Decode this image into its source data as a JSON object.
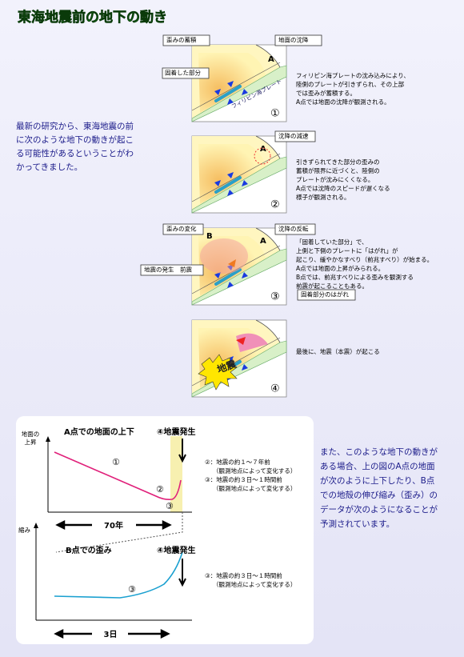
{
  "title": "東海地震前の地下の動き",
  "intro": [
    "最新の研究から、東海地震の前",
    "に次のような地下の動きが起こ",
    "る可能性があるということがわ",
    "かってきました。"
  ],
  "panels": [
    {
      "number": "①",
      "labels": [
        "歪みの蓄積",
        "地面の沈降",
        "A",
        "固着した部分",
        "フィリピン海プレート"
      ],
      "description": [
        "フィリピン海プレートの沈み込みにより、",
        "陸側のプレートが引きずられ、その上部",
        "では歪みが蓄積する。",
        "A点では地面の沈降が観測される。"
      ]
    },
    {
      "number": "②",
      "labels": [
        "沈降の減速",
        "A"
      ],
      "description": [
        "引きずられてきた部分の歪みの",
        "蓄積が限界に近づくと、陸側の",
        "プレートが沈みにくくなる。",
        "A点では沈降のスピードが遅くなる",
        "様子が観測される。"
      ]
    },
    {
      "number": "③",
      "labels": [
        "歪みの変化",
        "B",
        "沈降の反転",
        "A",
        "地震の発生　前震",
        "固着部分のはがれ"
      ],
      "description": [
        "「固着していた部分」で、",
        "上側と下側のプレートに「はがれ」が",
        "起こり、緩やかなすべり（前兆すべり）が始まる。",
        "A点では地面の上昇がみられる。",
        "B点では、前兆すべりによる歪みを観測する",
        "前震が起こることもある。"
      ]
    },
    {
      "number": "④",
      "labels": [
        "地震"
      ],
      "description": [
        "最後に、地震（本震）が起こる"
      ]
    }
  ],
  "graphs_text": [
    "また、このような地下の動きが",
    "ある場合、上の図のA点の地面",
    "が次のように上下したり、B点",
    "での地殻の伸び縮み（歪み）の",
    "データが次のようになることが",
    "予測されています。"
  ],
  "graphs": [
    {
      "y_label": [
        "地面の",
        "上昇"
      ],
      "title": "A点での地面の上下",
      "event": "④地震発生",
      "markers": [
        "①",
        "②",
        "③"
      ],
      "x_label": "70年",
      "notes": [
        "②：地震の約１～７年前",
        "（観測地点によって変化する）",
        "③：地震の約３日～１時間前",
        "（観測地点によって変化する）"
      ]
    },
    {
      "y_label": [
        "縮み"
      ],
      "title": "B点での歪み",
      "event": "④地震発生",
      "markers": [
        "③"
      ],
      "x_label": "3日",
      "notes": [
        "③：地震の約３日～１時間前",
        "（観測地点によって変化する）"
      ]
    }
  ]
}
